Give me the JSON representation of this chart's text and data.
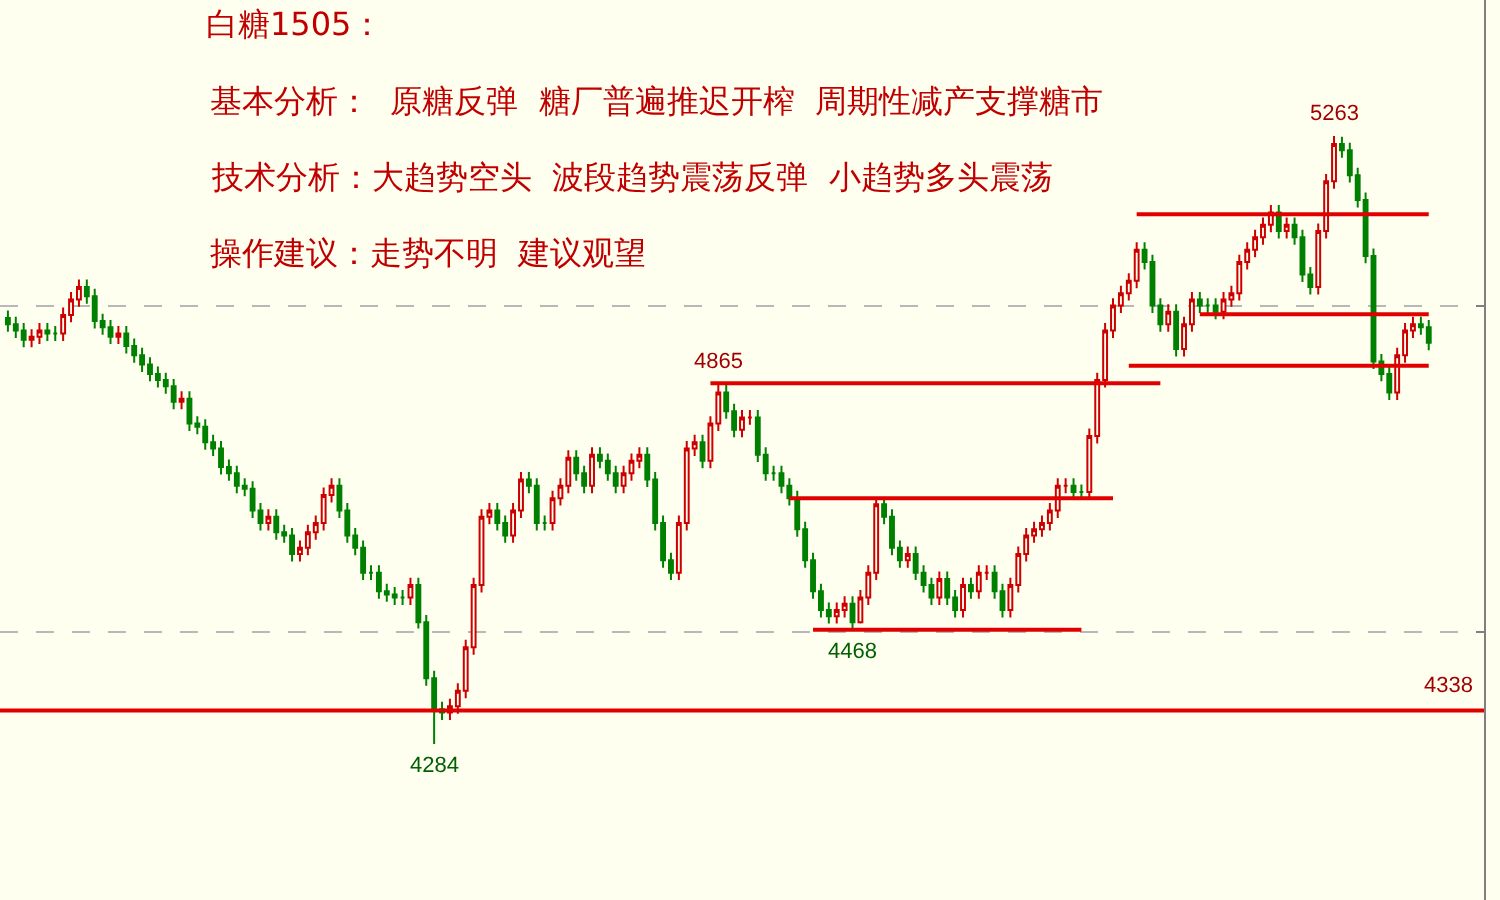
{
  "chart_data": {
    "type": "candlestick",
    "title": "白糖1505：",
    "annotations": [
      "基本分析：  原糖反弹  糖厂普遍推迟开榨  周期性减产支撑糖市",
      "技术分析：大趋势空头  波段趋势震荡反弹  小趋势多头震荡",
      "操作建议：走势不明  建议观望",
      {
        "text": "4865",
        "y": 4865
      },
      {
        "text": "4468",
        "y": 4468
      },
      {
        "text": "4284",
        "y": 4284
      },
      {
        "text": "5263",
        "y": 5263
      }
    ],
    "categories": [
      null,
      null,
      null,
      null,
      null,
      null,
      null,
      null,
      null,
      null,
      null,
      null,
      null,
      null,
      null,
      null,
      null,
      null,
      null,
      null,
      null,
      null,
      null,
      null,
      null,
      null,
      null,
      null,
      null,
      null,
      null,
      null,
      null,
      null,
      null,
      null,
      null,
      null,
      null,
      null,
      null,
      null,
      null,
      null,
      null,
      null,
      null,
      null,
      null,
      null,
      null,
      null,
      null,
      null,
      null,
      null,
      null,
      null,
      null,
      null,
      null,
      null,
      null,
      null,
      null,
      null,
      null,
      null,
      null,
      null,
      null,
      null,
      null,
      null,
      null,
      null,
      null,
      null,
      null,
      null,
      null,
      null,
      null,
      null,
      null,
      null,
      null,
      null,
      null,
      null,
      null,
      null,
      null,
      null,
      null,
      null,
      null,
      null,
      null,
      null,
      null,
      null,
      null,
      null,
      null,
      null,
      null,
      null,
      null,
      null,
      null,
      null,
      null,
      null,
      null,
      null,
      null,
      null,
      null,
      null,
      null,
      null,
      null,
      null,
      null,
      null,
      null,
      null,
      null,
      null,
      null,
      null,
      null,
      null,
      null,
      null,
      null,
      null,
      null,
      null,
      null,
      null,
      null,
      null,
      null,
      null,
      null,
      null,
      null,
      null,
      null,
      null,
      null,
      null,
      null,
      null,
      null,
      null,
      null,
      null,
      null,
      null,
      null,
      null,
      null,
      null,
      null,
      null,
      null,
      null,
      null,
      null,
      null,
      null,
      null,
      null,
      null,
      null,
      null,
      null,
      null
    ],
    "ohlc": [
      [
        4970,
        4982,
        4948,
        4960
      ],
      [
        4960,
        4972,
        4938,
        4950
      ],
      [
        4950,
        4962,
        4923,
        4935
      ],
      [
        4935,
        4952,
        4923,
        4940
      ],
      [
        4940,
        4962,
        4928,
        4950
      ],
      [
        4950,
        4962,
        4933,
        4945
      ],
      [
        4945,
        4957,
        4933,
        4945
      ],
      [
        4945,
        4987,
        4933,
        4975
      ],
      [
        4975,
        5012,
        4963,
        5000
      ],
      [
        5000,
        5032,
        4988,
        5020
      ],
      [
        5020,
        5032,
        4993,
        5005
      ],
      [
        5005,
        5017,
        4953,
        4965
      ],
      [
        4965,
        4977,
        4943,
        4955
      ],
      [
        4955,
        4967,
        4928,
        4940
      ],
      [
        4940,
        4957,
        4928,
        4945
      ],
      [
        4945,
        4957,
        4913,
        4925
      ],
      [
        4925,
        4937,
        4898,
        4910
      ],
      [
        4910,
        4922,
        4883,
        4895
      ],
      [
        4895,
        4907,
        4868,
        4880
      ],
      [
        4880,
        4892,
        4858,
        4870
      ],
      [
        4870,
        4882,
        4848,
        4860
      ],
      [
        4860,
        4872,
        4823,
        4835
      ],
      [
        4835,
        4852,
        4823,
        4840
      ],
      [
        4840,
        4852,
        4788,
        4800
      ],
      [
        4800,
        4812,
        4783,
        4795
      ],
      [
        4795,
        4807,
        4758,
        4770
      ],
      [
        4770,
        4782,
        4748,
        4760
      ],
      [
        4760,
        4772,
        4718,
        4730
      ],
      [
        4730,
        4742,
        4708,
        4720
      ],
      [
        4720,
        4732,
        4688,
        4700
      ],
      [
        4700,
        4712,
        4683,
        4695
      ],
      [
        4695,
        4707,
        4648,
        4660
      ],
      [
        4660,
        4672,
        4628,
        4640
      ],
      [
        4640,
        4662,
        4628,
        4650
      ],
      [
        4650,
        4662,
        4613,
        4625
      ],
      [
        4625,
        4637,
        4608,
        4620
      ],
      [
        4620,
        4632,
        4578,
        4590
      ],
      [
        4590,
        4612,
        4578,
        4600
      ],
      [
        4600,
        4637,
        4588,
        4625
      ],
      [
        4625,
        4652,
        4613,
        4640
      ],
      [
        4640,
        4697,
        4628,
        4685
      ],
      [
        4685,
        4712,
        4673,
        4700
      ],
      [
        4700,
        4712,
        4648,
        4660
      ],
      [
        4660,
        4672,
        4608,
        4620
      ],
      [
        4620,
        4632,
        4588,
        4600
      ],
      [
        4600,
        4612,
        4548,
        4560
      ],
      [
        4560,
        4572,
        4548,
        4560
      ],
      [
        4560,
        4572,
        4518,
        4530
      ],
      [
        4530,
        4542,
        4513,
        4525
      ],
      [
        4525,
        4537,
        4508,
        4520
      ],
      [
        4520,
        4532,
        4508,
        4520
      ],
      [
        4520,
        4552,
        4508,
        4540
      ],
      [
        4540,
        4552,
        4470,
        4480
      ],
      [
        4480,
        4492,
        4378,
        4390
      ],
      [
        4390,
        4402,
        4284,
        4340
      ],
      [
        4340,
        4352,
        4323,
        4335
      ],
      [
        4335,
        4357,
        4323,
        4345
      ],
      [
        4345,
        4382,
        4333,
        4370
      ],
      [
        4370,
        4452,
        4358,
        4440
      ],
      [
        4440,
        4552,
        4428,
        4540
      ],
      [
        4540,
        4662,
        4528,
        4650
      ],
      [
        4650,
        4672,
        4638,
        4660
      ],
      [
        4660,
        4672,
        4628,
        4640
      ],
      [
        4640,
        4652,
        4608,
        4620
      ],
      [
        4620,
        4672,
        4608,
        4660
      ],
      [
        4660,
        4722,
        4648,
        4710
      ],
      [
        4710,
        4722,
        4688,
        4700
      ],
      [
        4700,
        4712,
        4628,
        4640
      ],
      [
        4640,
        4652,
        4628,
        4640
      ],
      [
        4640,
        4692,
        4628,
        4680
      ],
      [
        4680,
        4712,
        4668,
        4700
      ],
      [
        4700,
        4757,
        4688,
        4745
      ],
      [
        4745,
        4757,
        4708,
        4720
      ],
      [
        4720,
        4732,
        4688,
        4700
      ],
      [
        4700,
        4762,
        4688,
        4750
      ],
      [
        4750,
        4762,
        4728,
        4740
      ],
      [
        4740,
        4752,
        4708,
        4720
      ],
      [
        4720,
        4732,
        4688,
        4700
      ],
      [
        4700,
        4732,
        4688,
        4720
      ],
      [
        4720,
        4752,
        4708,
        4740
      ],
      [
        4740,
        4762,
        4728,
        4750
      ],
      [
        4750,
        4762,
        4698,
        4710
      ],
      [
        4710,
        4722,
        4628,
        4640
      ],
      [
        4640,
        4652,
        4568,
        4580
      ],
      [
        4580,
        4592,
        4548,
        4560
      ],
      [
        4560,
        4652,
        4548,
        4640
      ],
      [
        4640,
        4772,
        4628,
        4760
      ],
      [
        4760,
        4782,
        4748,
        4770
      ],
      [
        4770,
        4782,
        4728,
        4740
      ],
      [
        4740,
        4812,
        4728,
        4800
      ],
      [
        4800,
        4865,
        4788,
        4850
      ],
      [
        4850,
        4862,
        4808,
        4820
      ],
      [
        4820,
        4832,
        4778,
        4790
      ],
      [
        4790,
        4822,
        4778,
        4810
      ],
      [
        4810,
        4822,
        4798,
        4810
      ],
      [
        4810,
        4822,
        4738,
        4750
      ],
      [
        4750,
        4762,
        4708,
        4720
      ],
      [
        4720,
        4732,
        4708,
        4720
      ],
      [
        4720,
        4732,
        4688,
        4700
      ],
      [
        4700,
        4712,
        4668,
        4680
      ],
      [
        4680,
        4692,
        4618,
        4630
      ],
      [
        4630,
        4642,
        4568,
        4580
      ],
      [
        4580,
        4592,
        4518,
        4530
      ],
      [
        4530,
        4542,
        4488,
        4500
      ],
      [
        4500,
        4512,
        4478,
        4490
      ],
      [
        4490,
        4512,
        4478,
        4500
      ],
      [
        4500,
        4522,
        4488,
        4510
      ],
      [
        4510,
        4522,
        4468,
        4480
      ],
      [
        4480,
        4532,
        4478,
        4520
      ],
      [
        4520,
        4572,
        4508,
        4560
      ],
      [
        4560,
        4682,
        4548,
        4670
      ],
      [
        4670,
        4682,
        4638,
        4650
      ],
      [
        4650,
        4662,
        4588,
        4600
      ],
      [
        4600,
        4612,
        4568,
        4580
      ],
      [
        4580,
        4602,
        4568,
        4590
      ],
      [
        4590,
        4602,
        4548,
        4560
      ],
      [
        4560,
        4572,
        4528,
        4540
      ],
      [
        4540,
        4552,
        4508,
        4520
      ],
      [
        4520,
        4562,
        4508,
        4550
      ],
      [
        4550,
        4562,
        4508,
        4520
      ],
      [
        4520,
        4532,
        4488,
        4500
      ],
      [
        4500,
        4552,
        4488,
        4540
      ],
      [
        4540,
        4552,
        4518,
        4530
      ],
      [
        4530,
        4572,
        4518,
        4560
      ],
      [
        4560,
        4572,
        4548,
        4560
      ],
      [
        4560,
        4572,
        4518,
        4530
      ],
      [
        4530,
        4542,
        4488,
        4500
      ],
      [
        4500,
        4552,
        4488,
        4540
      ],
      [
        4540,
        4602,
        4528,
        4590
      ],
      [
        4590,
        4632,
        4578,
        4620
      ],
      [
        4620,
        4642,
        4608,
        4630
      ],
      [
        4630,
        4652,
        4618,
        4640
      ],
      [
        4640,
        4672,
        4628,
        4660
      ],
      [
        4660,
        4712,
        4648,
        4700
      ],
      [
        4700,
        4712,
        4688,
        4700
      ],
      [
        4700,
        4712,
        4678,
        4690
      ],
      [
        4690,
        4702,
        4678,
        4690
      ],
      [
        4690,
        4792,
        4678,
        4780
      ],
      [
        4780,
        4882,
        4768,
        4870
      ],
      [
        4870,
        4962,
        4858,
        4950
      ],
      [
        4950,
        5002,
        4938,
        4990
      ],
      [
        4990,
        5022,
        4978,
        5010
      ],
      [
        5010,
        5042,
        4998,
        5030
      ],
      [
        5030,
        5092,
        5018,
        5080
      ],
      [
        5080,
        5092,
        5048,
        5060
      ],
      [
        5060,
        5072,
        4978,
        4990
      ],
      [
        4990,
        5002,
        4948,
        4960
      ],
      [
        4960,
        4992,
        4948,
        4980
      ],
      [
        4980,
        4992,
        4908,
        4920
      ],
      [
        4920,
        4972,
        4908,
        4960
      ],
      [
        4960,
        5012,
        4948,
        5000
      ],
      [
        5000,
        5012,
        4978,
        4990
      ],
      [
        4990,
        5002,
        4978,
        4990
      ],
      [
        4990,
        5002,
        4968,
        4980
      ],
      [
        4980,
        5012,
        4968,
        5000
      ],
      [
        5000,
        5022,
        4988,
        5010
      ],
      [
        5010,
        5072,
        4998,
        5060
      ],
      [
        5060,
        5092,
        5048,
        5080
      ],
      [
        5080,
        5112,
        5068,
        5100
      ],
      [
        5100,
        5132,
        5088,
        5120
      ],
      [
        5120,
        5152,
        5108,
        5140
      ],
      [
        5140,
        5152,
        5098,
        5110
      ],
      [
        5110,
        5132,
        5098,
        5120
      ],
      [
        5120,
        5132,
        5088,
        5100
      ],
      [
        5100,
        5112,
        5028,
        5040
      ],
      [
        5040,
        5052,
        5008,
        5020
      ],
      [
        5020,
        5122,
        5008,
        5110
      ],
      [
        5110,
        5202,
        5098,
        5190
      ],
      [
        5190,
        5263,
        5178,
        5250
      ],
      [
        5250,
        5262,
        5228,
        5240
      ],
      [
        5240,
        5252,
        5188,
        5200
      ],
      [
        5200,
        5212,
        5148,
        5160
      ],
      [
        5160,
        5172,
        5058,
        5070
      ],
      [
        5070,
        5082,
        4888,
        4900
      ],
      [
        4900,
        4912,
        4868,
        4880
      ],
      [
        4880,
        4892,
        4838,
        4850
      ],
      [
        4850,
        4922,
        4838,
        4910
      ],
      [
        4910,
        4962,
        4898,
        4950
      ],
      [
        4950,
        4972,
        4938,
        4960
      ],
      [
        4960,
        4972,
        4943,
        4955
      ],
      [
        4955,
        4967,
        4918,
        4930
      ]
    ],
    "series": [
      {
        "type": "line",
        "color": "#e00000",
        "values": [
          null,
          null,
          null,
          null,
          null,
          null,
          null,
          null,
          null,
          null,
          null,
          null,
          null,
          null,
          null,
          null,
          null,
          null,
          null,
          null,
          null,
          null,
          null,
          null,
          null,
          null,
          null,
          null,
          null,
          null,
          null,
          null,
          null,
          null,
          null,
          null,
          null,
          null,
          null,
          null,
          null,
          null,
          null,
          null,
          null,
          null,
          null,
          null,
          null,
          null,
          null,
          null,
          null,
          null,
          null,
          null,
          null,
          null,
          null,
          null,
          null,
          null,
          null,
          null,
          null,
          null,
          null,
          null,
          null,
          null,
          null,
          null,
          null,
          null,
          null,
          null,
          null,
          null,
          null,
          null,
          null,
          null,
          null,
          null,
          null,
          null,
          null,
          null,
          null,
          4865,
          null,
          null,
          null,
          null,
          null,
          null,
          null,
          null,
          null,
          null,
          null,
          null,
          null,
          null,
          null,
          null,
          null,
          null,
          null,
          null,
          null,
          null,
          null,
          null,
          null,
          null,
          null,
          null,
          null,
          null,
          null,
          null,
          null,
          null,
          null,
          null,
          null,
          null,
          null,
          null,
          null,
          null,
          null,
          null,
          null,
          null,
          null,
          null,
          null,
          null,
          null,
          null,
          null,
          null,
          null,
          null,
          4865,
          null,
          null,
          null,
          null,
          null,
          null,
          null,
          null,
          null,
          null,
          null,
          null,
          null,
          null,
          null,
          null,
          null,
          null,
          null,
          null,
          null,
          null,
          null,
          null,
          null,
          null,
          null,
          null,
          null,
          null,
          null,
          null,
          null,
          null
        ]
      },
      {
        "type": "line",
        "color": "#e00000",
        "values": [
          null,
          null,
          null,
          null,
          null,
          null,
          null,
          null,
          null,
          null,
          null,
          null,
          null,
          null,
          null,
          null,
          null,
          null,
          null,
          null,
          null,
          null,
          null,
          null,
          null,
          null,
          null,
          null,
          null,
          null,
          null,
          null,
          null,
          null,
          null,
          null,
          null,
          null,
          null,
          null,
          null,
          null,
          null,
          null,
          null,
          null,
          null,
          null,
          null,
          null,
          null,
          null,
          null,
          null,
          null,
          null,
          null,
          null,
          null,
          null,
          null,
          null,
          null,
          null,
          null,
          null,
          null,
          null,
          null,
          null,
          null,
          null,
          null,
          null,
          null,
          null,
          null,
          null,
          null,
          null,
          null,
          null,
          null,
          null,
          null,
          null,
          null,
          null,
          null,
          null,
          null,
          null,
          null,
          null,
          null,
          null,
          null,
          null,
          null,
          4680,
          null,
          null,
          null,
          null,
          null,
          null,
          null,
          null,
          null,
          null,
          null,
          null,
          null,
          null,
          null,
          null,
          null,
          null,
          null,
          null,
          null,
          null,
          null,
          null,
          null,
          null,
          null,
          null,
          null,
          null,
          null,
          null,
          null,
          null,
          null,
          null,
          null,
          null,
          null,
          null,
          4680,
          null,
          null,
          null,
          null,
          null,
          null,
          null,
          null,
          null,
          null,
          null,
          null,
          null,
          null,
          null,
          null,
          null,
          null,
          null,
          null,
          null,
          null,
          null,
          null,
          null,
          null,
          null,
          null,
          null,
          null,
          null,
          null,
          null,
          null,
          null,
          null,
          null,
          null,
          null,
          null
        ]
      },
      {
        "type": "line",
        "color": "#e00000",
        "values": [
          null,
          null,
          null,
          null,
          null,
          null,
          null,
          null,
          null,
          null,
          null,
          null,
          null,
          null,
          null,
          null,
          null,
          null,
          null,
          null,
          null,
          null,
          null,
          null,
          null,
          null,
          null,
          null,
          null,
          null,
          null,
          null,
          null,
          null,
          null,
          null,
          null,
          null,
          null,
          null,
          null,
          null,
          null,
          null,
          null,
          null,
          null,
          null,
          null,
          null,
          null,
          null,
          null,
          null,
          null,
          null,
          null,
          null,
          null,
          null,
          null,
          null,
          null,
          null,
          null,
          null,
          null,
          null,
          null,
          null,
          null,
          null,
          null,
          null,
          null,
          null,
          null,
          null,
          null,
          null,
          null,
          null,
          null,
          null,
          null,
          null,
          null,
          null,
          null,
          null,
          null,
          null,
          null,
          null,
          null,
          null,
          null,
          null,
          null,
          null,
          null,
          null,
          4468,
          null,
          null,
          null,
          null,
          null,
          null,
          null,
          null,
          null,
          null,
          null,
          null,
          null,
          null,
          null,
          null,
          null,
          null,
          null,
          null,
          null,
          null,
          null,
          null,
          null,
          null,
          null,
          null,
          null,
          null,
          null,
          null,
          null,
          4468,
          null,
          null,
          null,
          null,
          null,
          null,
          null,
          null,
          null,
          null,
          null,
          null,
          null,
          null,
          null,
          null,
          null,
          null,
          null,
          null,
          null,
          null,
          null,
          null,
          null,
          null,
          null,
          null,
          null,
          null,
          null,
          null,
          null,
          null,
          null,
          null,
          null,
          null,
          null,
          null,
          null,
          null,
          null,
          null
        ]
      },
      {
        "type": "line",
        "color": "#e00000",
        "values": [
          null,
          null,
          null,
          null,
          null,
          null,
          null,
          null,
          null,
          null,
          null,
          null,
          null,
          null,
          null,
          null,
          null,
          null,
          null,
          null,
          null,
          null,
          null,
          null,
          null,
          null,
          null,
          null,
          null,
          null,
          null,
          null,
          null,
          null,
          null,
          null,
          null,
          null,
          null,
          null,
          null,
          null,
          null,
          null,
          null,
          null,
          null,
          null,
          null,
          null,
          null,
          null,
          null,
          null,
          null,
          null,
          null,
          null,
          null,
          null,
          null,
          null,
          null,
          null,
          null,
          null,
          null,
          null,
          null,
          null,
          null,
          null,
          null,
          null,
          null,
          null,
          null,
          null,
          null,
          null,
          null,
          null,
          null,
          null,
          null,
          null,
          null,
          null,
          null,
          null,
          null,
          null,
          null,
          null,
          null,
          null,
          null,
          null,
          null,
          null,
          null,
          null,
          null,
          null,
          null,
          null,
          null,
          null,
          null,
          null,
          null,
          null,
          null,
          null,
          null,
          null,
          null,
          null,
          null,
          null,
          null,
          null,
          null,
          null,
          null,
          null,
          null,
          null,
          null,
          null,
          null,
          null,
          null,
          null,
          null,
          null,
          null,
          null,
          null,
          null,
          null,
          null,
          null,
          5137,
          null,
          null,
          null,
          null,
          null,
          null,
          null,
          null,
          null,
          null,
          null,
          null,
          null,
          null,
          null,
          null,
          null,
          null,
          null,
          null,
          null,
          null,
          null,
          null,
          null,
          null,
          null,
          null,
          null,
          null,
          null,
          null,
          null,
          null,
          null,
          null,
          5137
        ]
      },
      {
        "type": "line",
        "color": "#e00000",
        "values": [
          null,
          null,
          null,
          null,
          null,
          null,
          null,
          null,
          null,
          null,
          null,
          null,
          null,
          null,
          null,
          null,
          null,
          null,
          null,
          null,
          null,
          null,
          null,
          null,
          null,
          null,
          null,
          null,
          null,
          null,
          null,
          null,
          null,
          null,
          null,
          null,
          null,
          null,
          null,
          null,
          null,
          null,
          null,
          null,
          null,
          null,
          null,
          null,
          null,
          null,
          null,
          null,
          null,
          null,
          null,
          null,
          null,
          null,
          null,
          null,
          null,
          null,
          null,
          null,
          null,
          null,
          null,
          null,
          null,
          null,
          null,
          null,
          null,
          null,
          null,
          null,
          null,
          null,
          null,
          null,
          null,
          null,
          null,
          null,
          null,
          null,
          null,
          null,
          null,
          null,
          null,
          null,
          null,
          null,
          null,
          null,
          null,
          null,
          null,
          null,
          null,
          null,
          null,
          null,
          null,
          null,
          null,
          null,
          null,
          null,
          null,
          null,
          null,
          null,
          null,
          null,
          null,
          null,
          null,
          null,
          null,
          null,
          null,
          null,
          null,
          null,
          null,
          null,
          null,
          null,
          null,
          null,
          null,
          null,
          null,
          null,
          null,
          null,
          null,
          null,
          null,
          null,
          null,
          null,
          null,
          null,
          null,
          null,
          null,
          null,
          null,
          4976,
          null,
          null,
          null,
          null,
          null,
          null,
          null,
          null,
          null,
          null,
          null,
          null,
          null,
          null,
          null,
          null,
          null,
          null,
          null,
          null,
          null,
          null,
          null,
          null,
          null,
          null,
          null,
          null,
          4976
        ]
      },
      {
        "type": "line",
        "color": "#e00000",
        "values": [
          null,
          null,
          null,
          null,
          null,
          null,
          null,
          null,
          null,
          null,
          null,
          null,
          null,
          null,
          null,
          null,
          null,
          null,
          null,
          null,
          null,
          null,
          null,
          null,
          null,
          null,
          null,
          null,
          null,
          null,
          null,
          null,
          null,
          null,
          null,
          null,
          null,
          null,
          null,
          null,
          null,
          null,
          null,
          null,
          null,
          null,
          null,
          null,
          null,
          null,
          null,
          null,
          null,
          null,
          null,
          null,
          null,
          null,
          null,
          null,
          null,
          null,
          null,
          null,
          null,
          null,
          null,
          null,
          null,
          null,
          null,
          null,
          null,
          null,
          null,
          null,
          null,
          null,
          null,
          null,
          null,
          null,
          null,
          null,
          null,
          null,
          null,
          null,
          null,
          null,
          null,
          null,
          null,
          null,
          null,
          null,
          null,
          null,
          null,
          null,
          null,
          null,
          null,
          null,
          null,
          null,
          null,
          null,
          null,
          null,
          null,
          null,
          null,
          null,
          null,
          null,
          null,
          null,
          null,
          null,
          null,
          null,
          null,
          null,
          null,
          null,
          null,
          null,
          null,
          null,
          null,
          null,
          null,
          null,
          null,
          null,
          null,
          null,
          null,
          null,
          null,
          null,
          4893,
          null,
          null,
          null,
          null,
          null,
          null,
          null,
          null,
          null,
          null,
          null,
          null,
          null,
          null,
          null,
          null,
          null,
          null,
          null,
          null,
          null,
          null,
          null,
          null,
          null,
          null,
          null,
          null,
          null,
          null,
          null,
          null,
          null,
          null,
          null,
          null,
          null,
          4893
        ]
      }
    ],
    "ref_lines": [
      {
        "axis": "y",
        "value": 4338,
        "label": "4338",
        "color": "#e00000"
      }
    ],
    "ylim": [
      4033,
      5482
    ],
    "yticks": [
      {
        "value": 4464,
        "label": null
      },
      {
        "value": 4989,
        "label": null
      }
    ],
    "grid": "y"
  }
}
